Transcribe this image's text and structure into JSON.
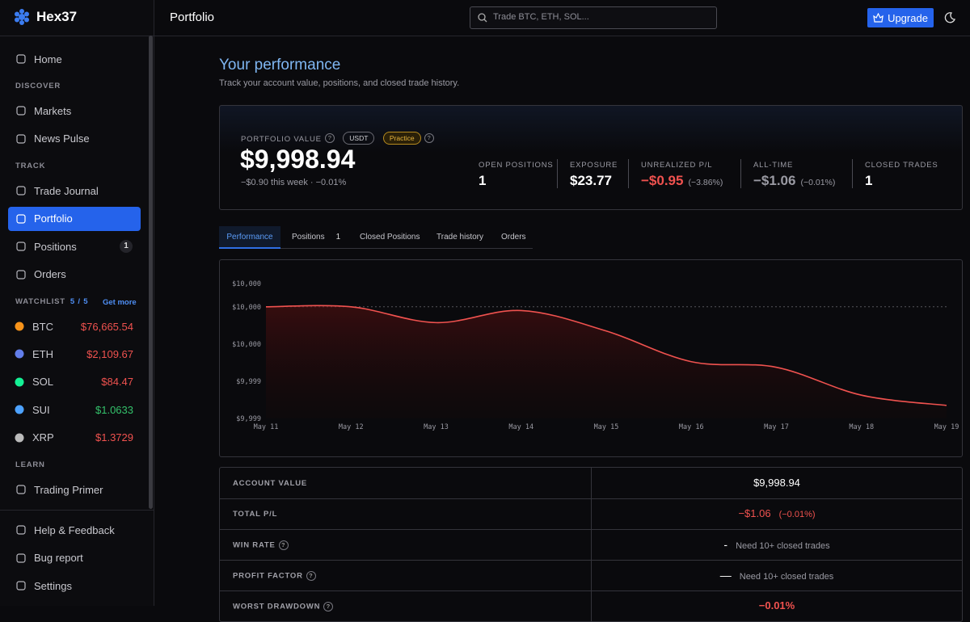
{
  "brand": "Hex37",
  "header": {
    "title": "Portfolio",
    "search_placeholder": "Trade BTC, ETH, SOL...",
    "upgrade": "Upgrade"
  },
  "sidebar": {
    "home": "Home",
    "discover": {
      "title": "DISCOVER",
      "items": [
        "Markets",
        "News Pulse"
      ]
    },
    "track": {
      "title": "TRACK",
      "items": [
        {
          "label": "Trade Journal"
        },
        {
          "label": "Portfolio"
        },
        {
          "label": "Positions",
          "badge": 1
        },
        {
          "label": "Orders"
        }
      ]
    },
    "watchlist": {
      "title": "WATCHLIST",
      "count": "5 / 5",
      "action": "Get more",
      "items": [
        {
          "symbol": "BTC",
          "price": "$76,665.54",
          "color": "#f0524f"
        },
        {
          "symbol": "ETH",
          "price": "$2,109.67",
          "color": "#f0524f"
        },
        {
          "symbol": "SOL",
          "price": "$84.47",
          "color": "#f0524f"
        },
        {
          "symbol": "SUI",
          "price": "$1.0633",
          "color": "#34c26b"
        },
        {
          "symbol": "XRP",
          "price": "$1.3729",
          "color": "#f0524f"
        }
      ]
    },
    "learn": {
      "title": "LEARN",
      "items": [
        "Trading Primer"
      ]
    },
    "footer": [
      "Help & Feedback",
      "Bug report",
      "Settings"
    ]
  },
  "main": {
    "heading": "Your performance",
    "subheading": "Track your account value, positions, and closed trade history.",
    "summary": {
      "label": "PORTFOLIO VALUE",
      "tags": [
        "USDT",
        "Practice"
      ],
      "value": "$9,998.94",
      "change": "−$0.90 this week · −0.01%",
      "stats": [
        {
          "label": "OPEN POSITIONS",
          "value": 1,
          "color": "#ffffff"
        },
        {
          "label": "EXPOSURE",
          "value": "$23.77",
          "color": "#ffffff"
        },
        {
          "label": "UNREALIZED P/L",
          "value": "−$0.95",
          "note": "(−3.86%)",
          "color": "#f0524f"
        },
        {
          "label": "ALL-TIME",
          "value": "−$1.06",
          "note": "(−0.01%)",
          "color": "#9a9aa3"
        },
        {
          "label": "CLOSED TRADES",
          "value": 1,
          "color": "#ffffff"
        }
      ]
    },
    "tabs": [
      {
        "label": "Performance"
      },
      {
        "label": "Positions",
        "count": 1
      },
      {
        "label": "Closed Positions"
      },
      {
        "label": "Trade history"
      },
      {
        "label": "Orders"
      }
    ],
    "table": {
      "rows": [
        {
          "label": "ACCOUNT VALUE",
          "value": "$9,998.94",
          "color": "#ffffff"
        },
        {
          "label": "TOTAL P/L",
          "value": "−$1.06",
          "note": "(−0.01%)",
          "color": "#f0524f"
        },
        {
          "label": "WIN RATE",
          "value": "-",
          "note": "Need 10+ closed trades",
          "color": "#ffffff"
        },
        {
          "label": "PROFIT FACTOR",
          "value": "—",
          "note": "Need 10+ closed trades",
          "color": "#ffffff"
        },
        {
          "label": "WORST DRAWDOWN",
          "value": "−0.01%",
          "color": "#f0524f"
        }
      ]
    }
  },
  "chart_data": {
    "type": "line",
    "categories": [
      "May 11",
      "May 12",
      "May 13",
      "May 14",
      "May 15",
      "May 16",
      "May 17",
      "May 18",
      "May 19"
    ],
    "values": [
      10000,
      10000,
      9999.83,
      9999.96,
      9999.74,
      9999.41,
      9999.35,
      9999.05,
      9998.94
    ],
    "color": "#f0524f",
    "reference_line": 10000,
    "ylim": [
      9998.8,
      10000.25
    ],
    "yticks": [
      {
        "value": 10000.25,
        "label": "$10,000"
      },
      {
        "value": 10000,
        "label": "$10,000"
      },
      {
        "value": 9999.6,
        "label": "$10,000"
      },
      {
        "value": 9999.2,
        "label": "$9,999"
      },
      {
        "value": 9998.8,
        "label": "$9,999"
      }
    ]
  }
}
